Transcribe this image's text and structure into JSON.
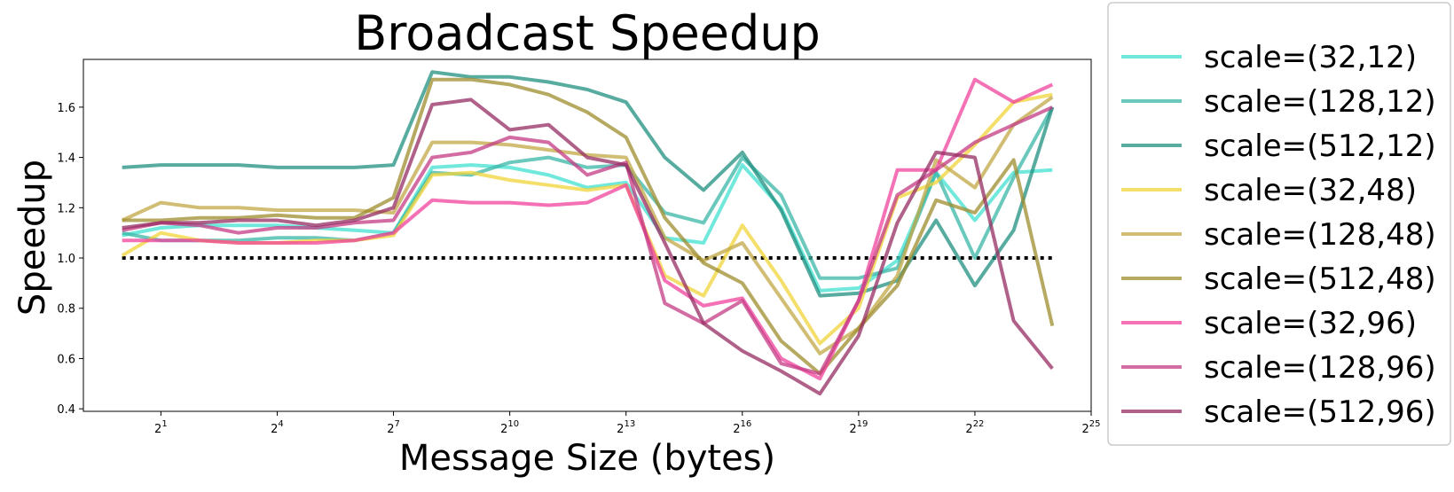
{
  "chart_data": {
    "type": "line",
    "title": "Broadcast Speedup",
    "xlabel": "Message Size (bytes)",
    "ylabel": "Speedup",
    "x_scale": "log2",
    "x": [
      1,
      2,
      4,
      8,
      16,
      32,
      64,
      128,
      256,
      512,
      1024,
      2048,
      4096,
      8192,
      16384,
      32768,
      65536,
      131072,
      262144,
      524288,
      1048576,
      2097152,
      4194304,
      8388608,
      16777216
    ],
    "xlim": [
      0.5,
      33554432
    ],
    "ylim": [
      0.39,
      1.79
    ],
    "x_ticks": [
      {
        "value": 2,
        "base": "2",
        "exp": "1"
      },
      {
        "value": 16,
        "base": "2",
        "exp": "4"
      },
      {
        "value": 128,
        "base": "2",
        "exp": "7"
      },
      {
        "value": 1024,
        "base": "2",
        "exp": "10"
      },
      {
        "value": 8192,
        "base": "2",
        "exp": "13"
      },
      {
        "value": 65536,
        "base": "2",
        "exp": "16"
      },
      {
        "value": 524288,
        "base": "2",
        "exp": "19"
      },
      {
        "value": 4194304,
        "base": "2",
        "exp": "22"
      },
      {
        "value": 33554432,
        "base": "2",
        "exp": "25"
      }
    ],
    "y_ticks": [
      "0.4",
      "0.6",
      "0.8",
      "1.0",
      "1.2",
      "1.4",
      "1.6"
    ],
    "y_tick_values": [
      0.4,
      0.6,
      0.8,
      1.0,
      1.2,
      1.4,
      1.6
    ],
    "reference_line": {
      "y": 1.0,
      "style": "dotted",
      "color": "#000000"
    },
    "legend_position": "outside-right",
    "grid": false,
    "series": [
      {
        "name": "scale=(32,12)",
        "color": "#40E0D0",
        "values": [
          1.09,
          1.12,
          1.13,
          1.13,
          1.13,
          1.12,
          1.11,
          1.1,
          1.36,
          1.37,
          1.36,
          1.33,
          1.28,
          1.3,
          1.08,
          1.06,
          1.37,
          1.2,
          0.87,
          0.88,
          0.99,
          1.34,
          1.15,
          1.34,
          1.35
        ]
      },
      {
        "name": "scale=(128,12)",
        "color": "#3AB5A5",
        "values": [
          1.1,
          1.07,
          1.07,
          1.07,
          1.08,
          1.08,
          1.07,
          1.1,
          1.34,
          1.33,
          1.38,
          1.4,
          1.36,
          1.37,
          1.18,
          1.14,
          1.4,
          1.25,
          0.92,
          0.92,
          0.96,
          1.34,
          1.0,
          1.32,
          1.6
        ]
      },
      {
        "name": "scale=(512,12)",
        "color": "#1F8F7F",
        "values": [
          1.36,
          1.37,
          1.37,
          1.37,
          1.36,
          1.36,
          1.36,
          1.37,
          1.74,
          1.72,
          1.72,
          1.7,
          1.67,
          1.62,
          1.4,
          1.27,
          1.42,
          1.19,
          0.85,
          0.86,
          0.91,
          1.15,
          0.89,
          1.11,
          1.6
        ]
      },
      {
        "name": "scale=(32,48)",
        "color": "#F2D43A",
        "values": [
          1.01,
          1.1,
          1.07,
          1.06,
          1.06,
          1.07,
          1.07,
          1.09,
          1.33,
          1.34,
          1.31,
          1.29,
          1.27,
          1.29,
          0.93,
          0.85,
          1.13,
          0.91,
          0.66,
          0.8,
          1.24,
          1.3,
          1.45,
          1.62,
          1.65
        ]
      },
      {
        "name": "scale=(128,48)",
        "color": "#C2A845",
        "values": [
          1.15,
          1.22,
          1.2,
          1.2,
          1.19,
          1.19,
          1.19,
          1.18,
          1.46,
          1.46,
          1.45,
          1.43,
          1.41,
          1.4,
          1.08,
          0.99,
          1.06,
          0.84,
          0.62,
          0.72,
          0.93,
          1.39,
          1.28,
          1.53,
          1.64
        ]
      },
      {
        "name": "scale=(512,48)",
        "color": "#9E8C2E",
        "values": [
          1.15,
          1.15,
          1.16,
          1.16,
          1.17,
          1.16,
          1.16,
          1.24,
          1.71,
          1.71,
          1.69,
          1.65,
          1.58,
          1.48,
          1.16,
          0.98,
          0.9,
          0.67,
          0.54,
          0.72,
          0.89,
          1.23,
          1.18,
          1.39,
          0.73
        ]
      },
      {
        "name": "scale=(32,96)",
        "color": "#F0429C",
        "values": [
          1.07,
          1.07,
          1.07,
          1.06,
          1.06,
          1.06,
          1.07,
          1.1,
          1.23,
          1.22,
          1.22,
          1.21,
          1.22,
          1.29,
          0.91,
          0.81,
          0.84,
          0.6,
          0.52,
          0.83,
          1.35,
          1.35,
          1.71,
          1.62,
          1.69
        ]
      },
      {
        "name": "scale=(128,96)",
        "color": "#C43B84",
        "values": [
          1.11,
          1.14,
          1.13,
          1.1,
          1.12,
          1.12,
          1.14,
          1.15,
          1.4,
          1.42,
          1.48,
          1.46,
          1.33,
          1.38,
          0.82,
          0.74,
          0.83,
          0.58,
          0.54,
          0.83,
          1.25,
          1.35,
          1.46,
          1.53,
          1.6
        ]
      },
      {
        "name": "scale=(512,96)",
        "color": "#962C62",
        "values": [
          1.12,
          1.14,
          1.14,
          1.15,
          1.15,
          1.13,
          1.15,
          1.2,
          1.61,
          1.63,
          1.51,
          1.53,
          1.4,
          1.37,
          1.06,
          0.74,
          0.63,
          0.55,
          0.46,
          0.69,
          1.14,
          1.42,
          1.4,
          0.75,
          0.56
        ]
      }
    ]
  }
}
